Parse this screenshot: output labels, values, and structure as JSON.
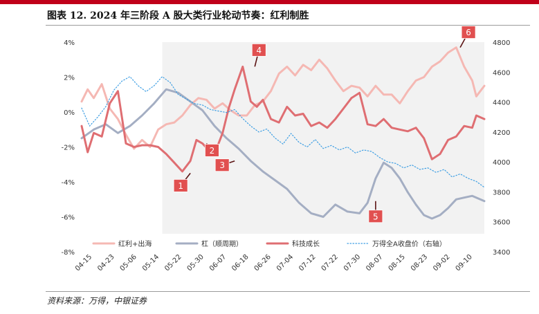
{
  "page": {
    "title": "图表 12. 2024 年三阶段 A 股大类行业轮动节奏：红利制胜",
    "source": "资料来源：万得，中银证券"
  },
  "colors": {
    "accent": "#c0001a",
    "dividend_overseas": "#f5b8b3",
    "dividend_pure": "#a4aec3",
    "tech_growth": "#df6e72",
    "wind_a": "#3d9ee3",
    "callout": "#e15050",
    "shade": "#f2f2f2"
  },
  "chart_data": {
    "type": "line",
    "x_tick_labels": [
      "04-15",
      "04-23",
      "05-06",
      "05-14",
      "05-22",
      "05-30",
      "06-07",
      "06-18",
      "06-26",
      "07-04",
      "07-12",
      "07-22",
      "07-30",
      "08-07",
      "08-15",
      "08-23",
      "09-02",
      "09-10"
    ],
    "x_range": [
      0,
      100
    ],
    "shaded_range": [
      20,
      100
    ],
    "y_left": {
      "ticks": [
        "4%",
        "2%",
        "0%",
        "-2%",
        "-4%",
        "-6%",
        "-8%"
      ],
      "range": [
        -8,
        4
      ]
    },
    "y_right": {
      "ticks": [
        "4800",
        "4600",
        "4400",
        "4200",
        "4000",
        "3800",
        "3600",
        "3400"
      ],
      "range": [
        3400,
        4800
      ]
    },
    "series": [
      {
        "name": "红利+出海",
        "axis": "left",
        "style": "thick",
        "x": [
          0,
          1.5,
          3,
          5,
          7,
          9,
          11,
          13,
          15,
          17,
          19,
          21,
          23,
          25,
          27,
          29,
          31,
          33,
          35,
          37,
          39,
          41,
          43,
          45,
          47,
          49,
          51,
          53,
          55,
          57,
          59,
          61,
          63,
          65,
          67,
          69,
          71,
          73,
          75,
          77,
          79,
          81,
          83,
          85,
          87,
          89,
          91,
          93,
          95,
          97,
          98,
          100
        ],
        "y": [
          0.6,
          1.3,
          0.8,
          1.6,
          0.2,
          -0.4,
          -1.3,
          -2.1,
          -1.6,
          -2.0,
          -1.0,
          -0.7,
          -0.6,
          -0.2,
          0.4,
          0.8,
          0.7,
          0.2,
          0.5,
          0.1,
          -0.2,
          -0.2,
          0.4,
          0.6,
          1.2,
          2.2,
          2.6,
          2.1,
          2.7,
          2.4,
          3.0,
          2.5,
          1.8,
          1.2,
          1.5,
          1.4,
          0.9,
          1.5,
          1.0,
          1.0,
          0.5,
          1.2,
          1.8,
          2.0,
          2.6,
          2.9,
          3.4,
          3.7,
          2.6,
          1.8,
          0.9,
          1.5
        ]
      },
      {
        "name": "杠（顺周期）",
        "axis": "left",
        "style": "thick",
        "x": [
          0,
          3,
          6,
          9,
          12,
          15,
          18,
          21,
          24,
          27,
          30,
          33,
          36,
          39,
          42,
          45,
          48,
          51,
          54,
          57,
          60,
          63,
          66,
          69,
          71,
          73,
          75,
          77,
          79,
          81,
          83,
          85,
          87,
          89,
          91,
          93,
          95,
          97,
          100
        ],
        "y": [
          -1.5,
          -1.0,
          -0.7,
          -1.2,
          -0.8,
          -0.2,
          0.5,
          1.3,
          1.1,
          0.6,
          0.1,
          -0.8,
          -1.5,
          -2.1,
          -2.8,
          -3.4,
          -3.9,
          -4.4,
          -5.2,
          -5.8,
          -6.0,
          -5.3,
          -5.7,
          -5.8,
          -5.2,
          -3.8,
          -2.9,
          -3.2,
          -3.8,
          -4.6,
          -5.3,
          -5.9,
          -6.1,
          -5.9,
          -5.5,
          -5.0,
          -4.9,
          -4.8,
          -5.1
        ]
      },
      {
        "name": "科技成长",
        "axis": "left",
        "style": "thick",
        "x": [
          0,
          1.5,
          3,
          5,
          7,
          9,
          11,
          13,
          15,
          17,
          19,
          21,
          23,
          25,
          27,
          28.5,
          30,
          32,
          33.5,
          35,
          36.5,
          38,
          40,
          42,
          43.5,
          45,
          47,
          49,
          51,
          53,
          55,
          57,
          59,
          61,
          63,
          65,
          67,
          69,
          71,
          73,
          75,
          77,
          79,
          81,
          83,
          85,
          87,
          89,
          91,
          93,
          95,
          97,
          98,
          100
        ],
        "y": [
          -0.8,
          -2.3,
          -1.2,
          -1.4,
          0.5,
          1.2,
          -1.8,
          -2.0,
          -1.9,
          -1.9,
          -2.0,
          -2.4,
          -2.9,
          -3.4,
          -2.8,
          -1.6,
          -1.8,
          -2.3,
          -2.1,
          -1.2,
          0.2,
          1.3,
          2.6,
          0.6,
          0.3,
          0.7,
          -0.4,
          -0.6,
          0.3,
          -0.2,
          -0.1,
          -0.8,
          -0.6,
          -0.9,
          -0.4,
          0.2,
          0.8,
          1.1,
          -0.7,
          -0.8,
          -0.4,
          -0.9,
          -1.0,
          -1.1,
          -0.9,
          -1.5,
          -2.7,
          -2.4,
          -1.6,
          -1.4,
          -0.8,
          -0.9,
          -0.2,
          -0.4
        ]
      },
      {
        "name": "万得全A收盘价（右轴）",
        "axis": "right",
        "style": "dotted",
        "x": [
          0,
          2,
          4,
          6,
          8,
          10,
          12,
          14,
          16,
          18,
          20,
          22,
          24,
          26,
          28,
          30,
          32,
          34,
          36,
          38,
          40,
          42,
          44,
          46,
          48,
          50,
          52,
          54,
          56,
          58,
          60,
          62,
          64,
          66,
          68,
          70,
          72,
          74,
          76,
          78,
          80,
          82,
          84,
          86,
          88,
          90,
          92,
          94,
          96,
          98,
          100
        ],
        "y": [
          4360,
          4240,
          4300,
          4370,
          4480,
          4540,
          4570,
          4510,
          4470,
          4510,
          4570,
          4530,
          4450,
          4420,
          4390,
          4380,
          4350,
          4340,
          4330,
          4350,
          4290,
          4240,
          4200,
          4220,
          4160,
          4120,
          4190,
          4130,
          4100,
          4150,
          4090,
          4110,
          4080,
          4100,
          4060,
          4080,
          4070,
          4030,
          4000,
          3990,
          3960,
          3980,
          3950,
          3960,
          3930,
          3950,
          3900,
          3920,
          3890,
          3870,
          3830
        ]
      }
    ],
    "legend": [
      {
        "label": "红利+出海",
        "series": 0
      },
      {
        "label": "杠（顺周期）",
        "series": 1
      },
      {
        "label": "科技成长",
        "series": 2
      },
      {
        "label": "万得全A收盘价（右轴）",
        "series": 3
      }
    ],
    "annotations": [
      {
        "label": "1",
        "x": 27,
        "y": -3.5
      },
      {
        "label": "2",
        "x": 31,
        "y": -1.8
      },
      {
        "label": "3",
        "x": 38,
        "y": -2.8
      },
      {
        "label": "4",
        "x": 43,
        "y": 2.6
      },
      {
        "label": "5",
        "x": 73,
        "y": -5.1
      },
      {
        "label": "6",
        "x": 94,
        "y": 3.7
      }
    ]
  }
}
